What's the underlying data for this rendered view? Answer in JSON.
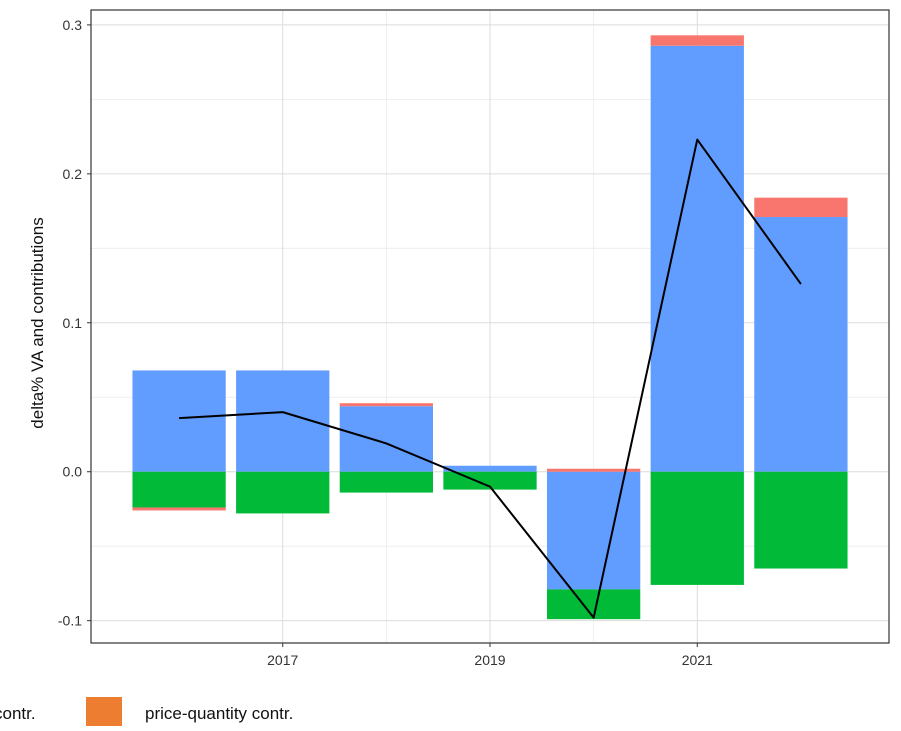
{
  "chart_data": {
    "type": "bar",
    "subtype": "stacked-diverging with line overlay",
    "ylabel": "delta% VA and contributions",
    "xlabel": "",
    "ylim": [
      -0.115,
      0.31
    ],
    "xlim": [
      2015.15,
      2022.85
    ],
    "y_ticks": [
      -0.1,
      0.0,
      0.1,
      0.2,
      0.3
    ],
    "y_tick_labels": [
      "-0.1",
      "0.0",
      "0.1",
      "0.2",
      "0.3"
    ],
    "x_ticks": [
      2017,
      2019,
      2021
    ],
    "x_tick_labels": [
      "2017",
      "2019",
      "2021"
    ],
    "grid": true,
    "panel_border": true,
    "legend_position": "bottom",
    "x": [
      2016,
      2017,
      2018,
      2019,
      2020,
      2021,
      2022
    ],
    "series": [
      {
        "color": "#619CFF",
        "values": [
          0.068,
          0.068,
          0.044,
          0.004,
          -0.079,
          0.286,
          0.171
        ]
      },
      {
        "color": "#00BA38",
        "values": [
          -0.024,
          -0.028,
          -0.014,
          -0.012,
          -0.02,
          -0.076,
          -0.065
        ]
      },
      {
        "color": "#F8766D",
        "values": [
          -0.002,
          0.0,
          0.002,
          0.0,
          0.002,
          0.007,
          0.013
        ]
      },
      {
        "color": "#ED7D31",
        "values": [
          0,
          0,
          0,
          0,
          0,
          0,
          0
        ]
      }
    ],
    "line": {
      "color": "#000000",
      "values": [
        0.036,
        0.04,
        0.019,
        -0.01,
        -0.098,
        0.223,
        0.126
      ]
    },
    "legend": [
      {
        "label": "contr.",
        "color": null
      },
      {
        "label": "price-quantity contr.",
        "color": "#ED7D31"
      }
    ]
  }
}
